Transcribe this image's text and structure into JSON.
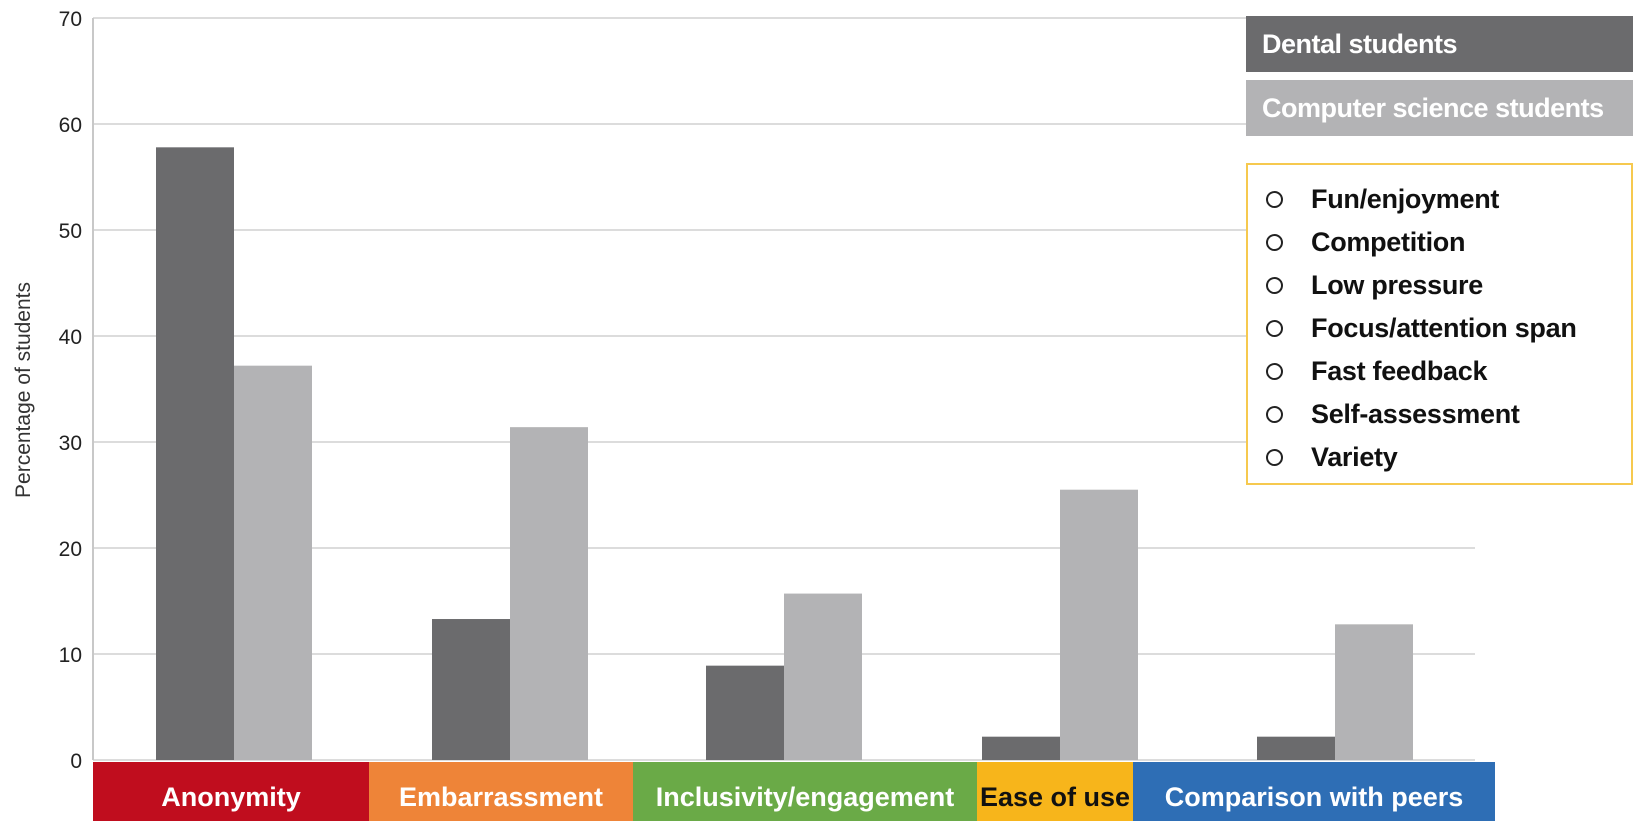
{
  "chart_data": {
    "type": "bar",
    "ylabel": "Percentage of students",
    "xlabel": "",
    "ylim": [
      0,
      70
    ],
    "yticks": [
      0,
      10,
      20,
      30,
      40,
      50,
      60,
      70
    ],
    "grid": true,
    "categories": [
      "Anonymity",
      "Embarrassment",
      "Inclusivity/engagement",
      "Ease of use",
      "Comparison with peers"
    ],
    "category_colors": [
      "#c00d1e",
      "#ee8438",
      "#6aaa47",
      "#f7b51b",
      "#2e6eb5"
    ],
    "series": [
      {
        "name": "Dental students",
        "color": "#6b6b6d",
        "values": [
          57.8,
          13.3,
          8.9,
          2.2,
          2.2
        ]
      },
      {
        "name": "Computer science students",
        "color": "#b3b3b5",
        "values": [
          37.2,
          31.4,
          15.7,
          25.5,
          12.8
        ]
      }
    ],
    "legend_position": "top-right"
  },
  "benefits": [
    "Fun/enjoyment",
    "Competition",
    "Low pressure",
    "Focus/attention span",
    "Fast feedback",
    "Self-assessment",
    "Variety"
  ],
  "benefit_box_color": "#f6c94f"
}
